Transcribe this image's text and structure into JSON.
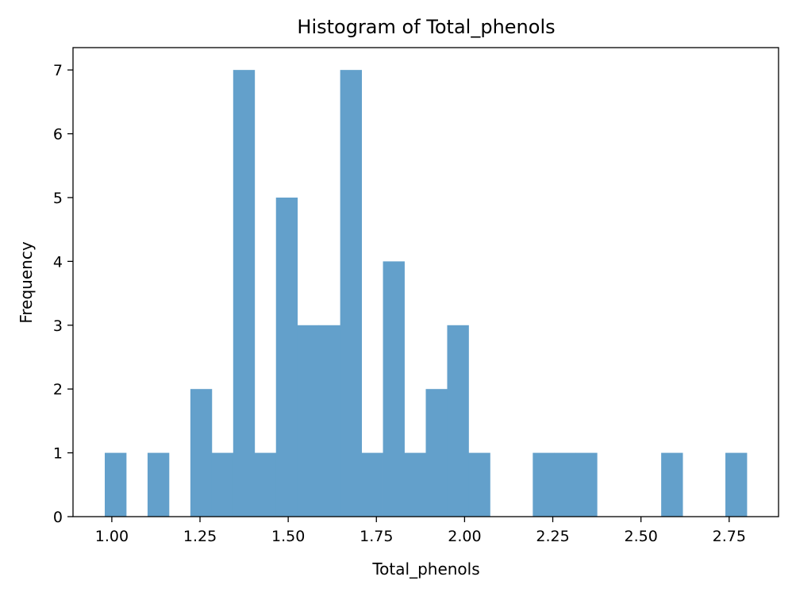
{
  "chart_data": {
    "type": "bar",
    "title": "Histogram of Total_phenols",
    "xlabel": "Total_phenols",
    "ylabel": "Frequency",
    "bar_color": "#63a0cb",
    "grid": false,
    "xlim": [
      0.89,
      2.89
    ],
    "ylim": [
      0,
      7.35
    ],
    "x_ticks": [
      1.0,
      1.25,
      1.5,
      1.75,
      2.0,
      2.25,
      2.5,
      2.75
    ],
    "x_tick_labels": [
      "1.00",
      "1.25",
      "1.50",
      "1.75",
      "2.00",
      "2.25",
      "2.50",
      "2.75"
    ],
    "y_ticks": [
      0,
      1,
      2,
      3,
      4,
      5,
      6,
      7
    ],
    "y_tick_labels": [
      "0",
      "1",
      "2",
      "3",
      "4",
      "5",
      "6",
      "7"
    ],
    "bin_start": 0.98,
    "bin_end": 2.8,
    "bin_count": 30,
    "values": [
      1,
      0,
      1,
      0,
      2,
      1,
      7,
      1,
      5,
      3,
      3,
      7,
      1,
      4,
      1,
      2,
      3,
      1,
      0,
      0,
      1,
      1,
      1,
      0,
      0,
      0,
      1,
      0,
      0,
      1
    ]
  }
}
